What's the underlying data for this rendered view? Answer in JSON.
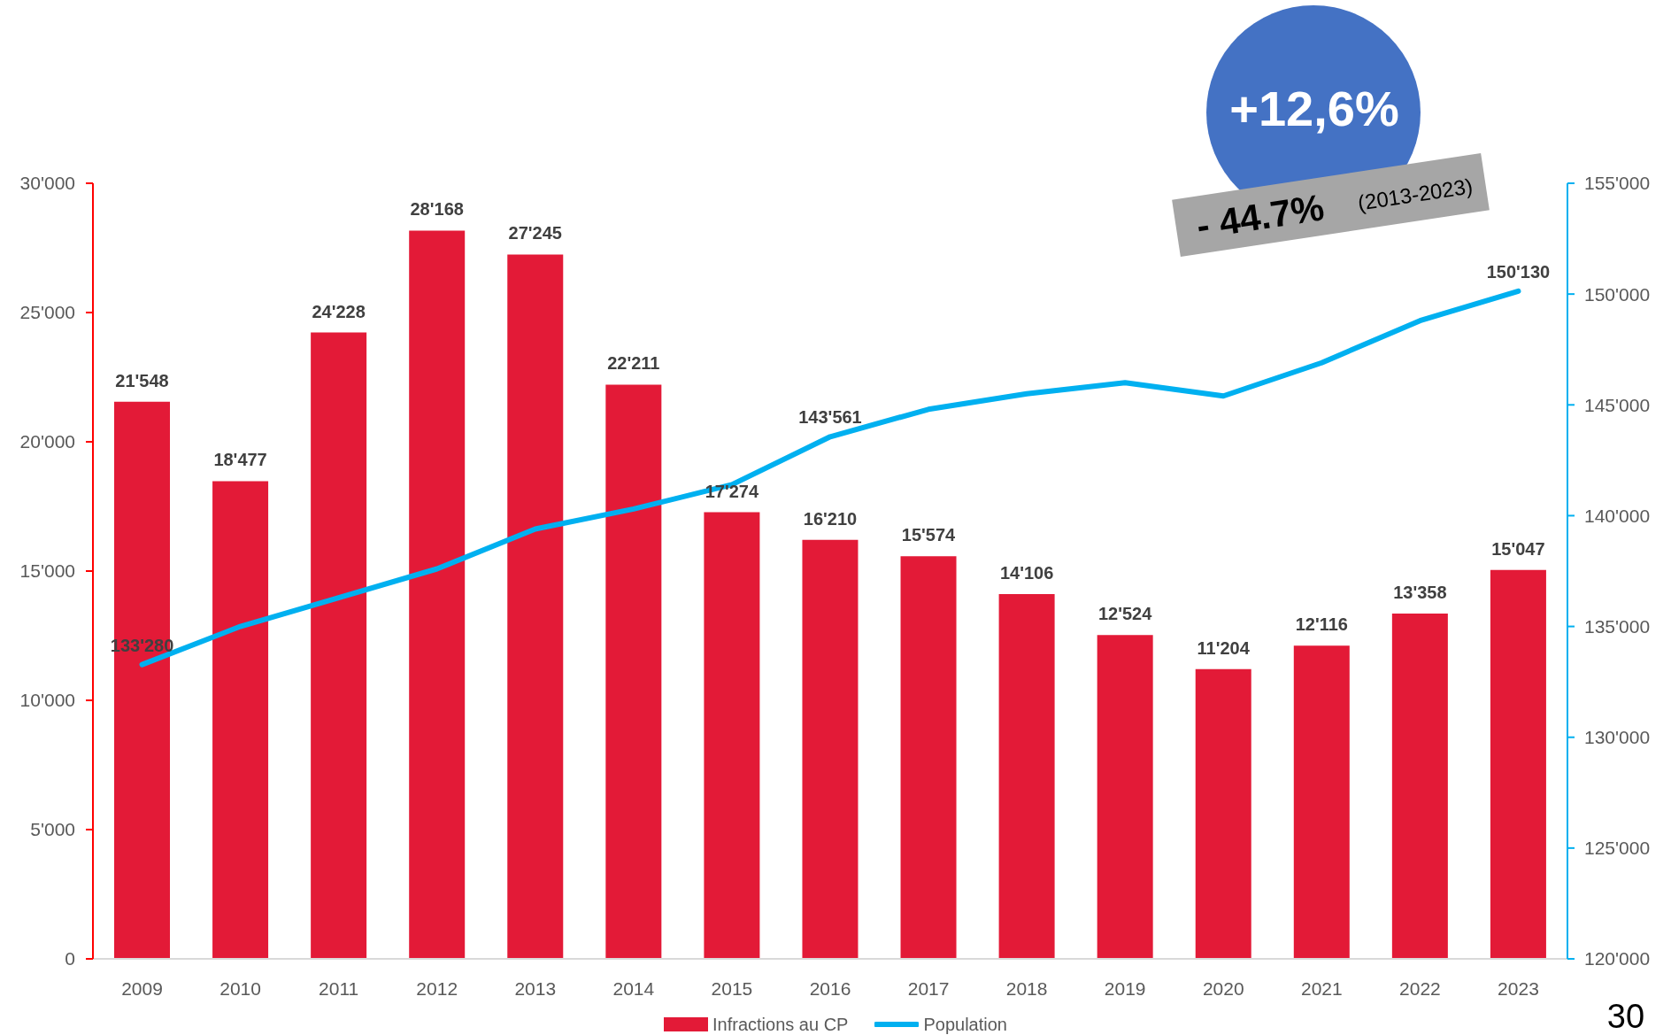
{
  "chart_data": {
    "type": "bar",
    "categories": [
      "2009",
      "2010",
      "2011",
      "2012",
      "2013",
      "2014",
      "2015",
      "2016",
      "2017",
      "2018",
      "2019",
      "2020",
      "2021",
      "2022",
      "2023"
    ],
    "series": [
      {
        "name": "Infractions au CP",
        "color": "#e31a37",
        "values": [
          21548,
          18477,
          24228,
          28168,
          27245,
          22211,
          17274,
          16210,
          15574,
          14106,
          12524,
          11204,
          12116,
          13358,
          15047
        ],
        "value_labels": [
          "21'548",
          "18'477",
          "24'228",
          "28'168",
          "27'245",
          "22'211",
          "17'274",
          "16'210",
          "15'574",
          "14'106",
          "12'524",
          "11'204",
          "12'116",
          "13'358",
          "15'047"
        ]
      },
      {
        "name": "Population",
        "type": "line",
        "axis": "y2",
        "color": "#00b0f0",
        "values": [
          133280,
          135000,
          136300,
          137600,
          139400,
          140300,
          141400,
          143561,
          144800,
          145500,
          146000,
          145400,
          146900,
          148800,
          150130
        ],
        "value_labels": [
          "133'280",
          null,
          null,
          null,
          null,
          null,
          null,
          "143'561",
          null,
          null,
          null,
          null,
          null,
          null,
          "150'130"
        ]
      }
    ],
    "ylim": [
      0,
      30000
    ],
    "yticks": [
      0,
      {
        "value": 5000,
        "label": "5'000"
      },
      {
        "value": 10000,
        "label": "10'000"
      },
      {
        "value": 15000,
        "label": "15'000"
      },
      {
        "value": 20000,
        "label": "20'000"
      },
      {
        "value": 25000,
        "label": "25'000"
      },
      {
        "value": 30000,
        "label": "30'000"
      }
    ],
    "y2lim": [
      120000,
      155000
    ],
    "y2ticks": [
      {
        "value": 120000,
        "label": "120'000"
      },
      {
        "value": 125000,
        "label": "125'000"
      },
      {
        "value": 130000,
        "label": "130'000"
      },
      {
        "value": 135000,
        "label": "135'000"
      },
      {
        "value": 140000,
        "label": "140'000"
      },
      {
        "value": 145000,
        "label": "145'000"
      },
      {
        "value": 150000,
        "label": "150'000"
      },
      {
        "value": 155000,
        "label": "155'000"
      }
    ],
    "legend": "bottom",
    "annotations": [
      "+12,6%",
      "- 44.7%",
      "(2013-2023)",
      "30"
    ]
  }
}
